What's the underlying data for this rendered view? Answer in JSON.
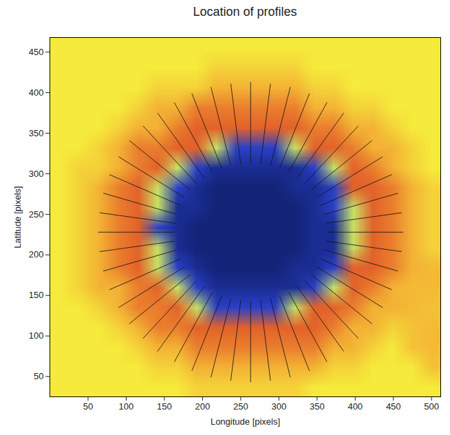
{
  "chart_data": {
    "type": "heatmap",
    "title": "Location of profiles",
    "x_label": "Longitude [pixels]",
    "y_label": "Latitude [pixels]",
    "xlim": [
      0,
      512
    ],
    "ylim": [
      25,
      468
    ],
    "xticks": [
      50,
      100,
      150,
      200,
      250,
      300,
      350,
      400,
      450,
      500
    ],
    "yticks": [
      50,
      100,
      150,
      200,
      250,
      300,
      350,
      400,
      450
    ],
    "heatmap": {
      "x1": 0,
      "x2": 512,
      "y1": 468,
      "y2": 25,
      "range": [
        0,
        1
      ],
      "values": [
        [
          0.6,
          0.6,
          0.6,
          0.6,
          0.6,
          0.6,
          0.6,
          0.6,
          0.6,
          0.6,
          0.6,
          0.6,
          0.6,
          0.6,
          0.6,
          0.6,
          0.6,
          0.6,
          0.6,
          0.6
        ],
        [
          0.6,
          0.6,
          0.6,
          0.6,
          0.6,
          0.6,
          0.6,
          0.6,
          0.66,
          0.66,
          0.66,
          0.66,
          0.66,
          0.6,
          0.6,
          0.6,
          0.6,
          0.6,
          0.6,
          0.6
        ],
        [
          0.6,
          0.6,
          0.6,
          0.6,
          0.6,
          0.66,
          0.66,
          0.66,
          0.74,
          0.74,
          0.74,
          0.74,
          0.74,
          0.66,
          0.66,
          0.6,
          0.6,
          0.6,
          0.6,
          0.6
        ],
        [
          0.6,
          0.6,
          0.6,
          0.6,
          0.66,
          0.74,
          0.74,
          0.86,
          0.86,
          0.86,
          0.86,
          0.86,
          0.86,
          0.74,
          0.74,
          0.66,
          0.66,
          0.6,
          0.6,
          0.6
        ],
        [
          0.6,
          0.6,
          0.6,
          0.66,
          0.74,
          0.74,
          0.86,
          0.92,
          0.92,
          0.92,
          0.92,
          0.92,
          0.92,
          0.86,
          0.86,
          0.74,
          0.74,
          0.66,
          0.6,
          0.6
        ],
        [
          0.6,
          0.6,
          0.66,
          0.74,
          0.86,
          0.86,
          0.92,
          0.92,
          0.55,
          0.2,
          0.2,
          0.2,
          0.55,
          0.92,
          0.92,
          0.86,
          0.74,
          0.74,
          0.66,
          0.6
        ],
        [
          0.6,
          0.66,
          0.66,
          0.74,
          0.86,
          0.92,
          0.55,
          0.2,
          0.08,
          0.08,
          0.08,
          0.08,
          0.08,
          0.2,
          0.55,
          0.92,
          0.86,
          0.74,
          0.66,
          0.6
        ],
        [
          0.6,
          0.66,
          0.74,
          0.86,
          0.92,
          0.55,
          0.2,
          0.08,
          0.02,
          0.02,
          0.02,
          0.02,
          0.08,
          0.08,
          0.2,
          0.92,
          0.92,
          0.86,
          0.74,
          0.66
        ],
        [
          0.6,
          0.66,
          0.74,
          0.86,
          0.92,
          0.55,
          0.08,
          0.08,
          0.02,
          0.02,
          0.02,
          0.02,
          0.02,
          0.08,
          0.2,
          0.55,
          0.92,
          0.86,
          0.74,
          0.66
        ],
        [
          0.6,
          0.66,
          0.74,
          0.86,
          0.92,
          0.2,
          0.08,
          0.02,
          0.02,
          0.02,
          0.02,
          0.02,
          0.02,
          0.08,
          0.08,
          0.55,
          0.92,
          0.86,
          0.74,
          0.66
        ],
        [
          0.6,
          0.66,
          0.74,
          0.86,
          0.92,
          0.55,
          0.08,
          0.02,
          0.02,
          0.02,
          0.02,
          0.02,
          0.02,
          0.08,
          0.08,
          0.55,
          0.92,
          0.86,
          0.74,
          0.66
        ],
        [
          0.6,
          0.66,
          0.74,
          0.86,
          0.92,
          0.55,
          0.2,
          0.08,
          0.02,
          0.02,
          0.02,
          0.02,
          0.08,
          0.08,
          0.2,
          0.92,
          0.92,
          0.86,
          0.74,
          0.72
        ],
        [
          0.6,
          0.66,
          0.74,
          0.74,
          0.86,
          0.92,
          0.55,
          0.2,
          0.08,
          0.08,
          0.08,
          0.08,
          0.08,
          0.2,
          0.55,
          0.92,
          0.86,
          0.74,
          0.72,
          0.72
        ],
        [
          0.6,
          0.6,
          0.66,
          0.74,
          0.86,
          0.86,
          0.92,
          0.55,
          0.2,
          0.2,
          0.2,
          0.2,
          0.55,
          0.92,
          0.92,
          0.86,
          0.74,
          0.74,
          0.72,
          0.7
        ],
        [
          0.6,
          0.6,
          0.6,
          0.66,
          0.74,
          0.86,
          0.86,
          0.92,
          0.92,
          0.92,
          0.92,
          0.92,
          0.92,
          0.92,
          0.86,
          0.74,
          0.74,
          0.66,
          0.7,
          0.72
        ],
        [
          0.6,
          0.6,
          0.6,
          0.6,
          0.66,
          0.74,
          0.74,
          0.86,
          0.86,
          0.86,
          0.86,
          0.86,
          0.86,
          0.86,
          0.74,
          0.74,
          0.66,
          0.6,
          0.7,
          0.72
        ],
        [
          0.6,
          0.6,
          0.6,
          0.6,
          0.6,
          0.66,
          0.66,
          0.74,
          0.74,
          0.74,
          0.74,
          0.74,
          0.74,
          0.74,
          0.66,
          0.66,
          0.6,
          0.6,
          0.6,
          0.7
        ],
        [
          0.6,
          0.6,
          0.6,
          0.6,
          0.6,
          0.6,
          0.6,
          0.66,
          0.66,
          0.66,
          0.66,
          0.66,
          0.66,
          0.6,
          0.6,
          0.6,
          0.6,
          0.6,
          0.6,
          0.6
        ]
      ]
    },
    "profiles": [
      [
        363,
        228,
        463,
        228
      ],
      [
        362,
        239,
        461,
        252
      ],
      [
        360,
        250,
        456,
        276
      ],
      [
        355,
        261,
        448,
        299
      ],
      [
        350,
        271,
        436,
        321
      ],
      [
        342,
        280,
        422,
        341
      ],
      [
        334,
        288,
        404,
        359
      ],
      [
        324,
        295,
        385,
        375
      ],
      [
        313,
        302,
        363,
        388
      ],
      [
        301,
        307,
        340,
        399
      ],
      [
        289,
        310,
        315,
        407
      ],
      [
        276,
        312,
        289,
        411
      ],
      [
        263,
        313,
        263,
        413
      ],
      [
        250,
        312,
        237,
        411
      ],
      [
        237,
        310,
        211,
        407
      ],
      [
        225,
        307,
        186,
        399
      ],
      [
        213,
        302,
        163,
        388
      ],
      [
        202,
        295,
        141,
        375
      ],
      [
        192,
        288,
        122,
        359
      ],
      [
        184,
        280,
        104,
        341
      ],
      [
        176,
        271,
        90,
        321
      ],
      [
        171,
        261,
        78,
        299
      ],
      [
        166,
        250,
        70,
        276
      ],
      [
        164,
        239,
        65,
        252
      ],
      [
        163,
        228,
        63,
        228
      ],
      [
        164,
        217,
        65,
        204
      ],
      [
        166,
        206,
        70,
        180
      ],
      [
        171,
        195,
        78,
        157
      ],
      [
        176,
        185,
        90,
        135
      ],
      [
        184,
        176,
        104,
        115
      ],
      [
        192,
        168,
        122,
        97
      ],
      [
        202,
        161,
        141,
        81
      ],
      [
        213,
        154,
        163,
        68
      ],
      [
        225,
        149,
        186,
        57
      ],
      [
        237,
        146,
        211,
        49
      ],
      [
        250,
        144,
        237,
        45
      ],
      [
        263,
        143,
        263,
        43
      ],
      [
        276,
        144,
        289,
        45
      ],
      [
        289,
        146,
        315,
        49
      ],
      [
        301,
        149,
        340,
        57
      ],
      [
        313,
        154,
        363,
        68
      ],
      [
        324,
        161,
        385,
        81
      ],
      [
        334,
        168,
        404,
        97
      ],
      [
        342,
        176,
        422,
        115
      ],
      [
        350,
        185,
        436,
        135
      ],
      [
        355,
        195,
        448,
        157
      ],
      [
        360,
        206,
        456,
        180
      ],
      [
        362,
        217,
        461,
        204
      ]
    ]
  }
}
